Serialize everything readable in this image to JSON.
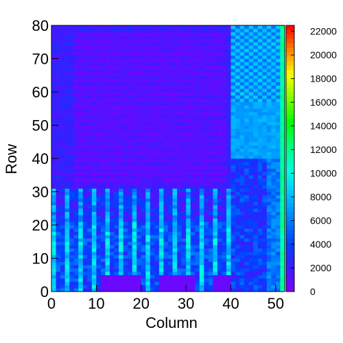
{
  "chart_data": {
    "type": "heatmap",
    "title": "",
    "xlabel": "Column",
    "ylabel": "Row",
    "xlim": [
      0,
      52
    ],
    "ylim": [
      0,
      80
    ],
    "x_ticks": [
      "0",
      "10",
      "20",
      "30",
      "40",
      "50"
    ],
    "y_ticks": [
      "0",
      "10",
      "20",
      "30",
      "40",
      "50",
      "60",
      "70",
      "80"
    ],
    "colorbar": {
      "range": [
        0,
        22500
      ],
      "ticks": [
        "0",
        "2000",
        "4000",
        "6000",
        "8000",
        "10000",
        "12000",
        "14000",
        "16000",
        "18000",
        "20000",
        "22000"
      ],
      "palette": [
        "#8000ff",
        "#3b1cff",
        "#0040ff",
        "#0080ff",
        "#00c0ff",
        "#00ffe0",
        "#00ff80",
        "#00ff00",
        "#80ff00",
        "#ffff00",
        "#ff8000",
        "#ff0000"
      ]
    },
    "grid": false,
    "region_values": {
      "background_row_bands": 1200,
      "upper_mid_block": 500,
      "right_column_block": 6500,
      "right_checker_low": 5500,
      "right_checker_high": 8000,
      "edge_column": 11000,
      "lower_pads": 500,
      "lower_structure_low": 2500,
      "lower_structure_high": 7000
    }
  }
}
